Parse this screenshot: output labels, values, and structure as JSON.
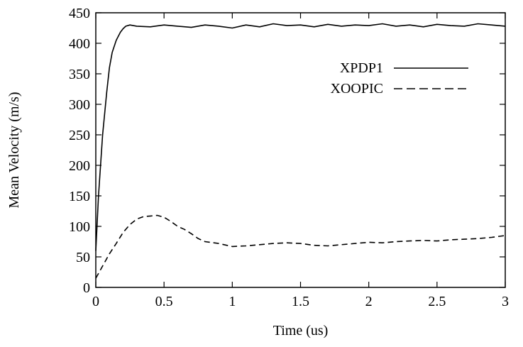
{
  "chart_data": {
    "type": "line",
    "title": "",
    "xlabel": "Time (us)",
    "ylabel": "Mean Velocity (m/s)",
    "xlim": [
      0,
      3
    ],
    "ylim": [
      0,
      450
    ],
    "x_ticks": [
      0,
      0.5,
      1,
      1.5,
      2,
      2.5,
      3
    ],
    "x_tick_labels": [
      "0",
      "0.5",
      "1",
      "1.5",
      "2",
      "2.5",
      "3"
    ],
    "y_ticks": [
      0,
      50,
      100,
      150,
      200,
      250,
      300,
      350,
      400,
      450
    ],
    "y_tick_labels": [
      "0",
      "50",
      "100",
      "150",
      "200",
      "250",
      "300",
      "350",
      "400",
      "450"
    ],
    "grid": false,
    "legend_position": "top-right",
    "series": [
      {
        "name": "XPDP1",
        "style": "solid",
        "color": "#000000",
        "x": [
          0,
          0.02,
          0.05,
          0.08,
          0.1,
          0.12,
          0.15,
          0.18,
          0.2,
          0.22,
          0.25,
          0.3,
          0.4,
          0.5,
          0.6,
          0.7,
          0.8,
          0.9,
          1.0,
          1.1,
          1.2,
          1.3,
          1.4,
          1.5,
          1.6,
          1.7,
          1.8,
          1.9,
          2.0,
          2.1,
          2.2,
          2.3,
          2.4,
          2.5,
          2.6,
          2.7,
          2.8,
          2.9,
          3.0
        ],
        "y": [
          60,
          150,
          250,
          320,
          360,
          385,
          405,
          418,
          424,
          428,
          430,
          428,
          427,
          430,
          428,
          426,
          430,
          428,
          425,
          430,
          427,
          432,
          429,
          430,
          427,
          431,
          428,
          430,
          429,
          432,
          428,
          430,
          427,
          431,
          429,
          428,
          432,
          430,
          428
        ]
      },
      {
        "name": "XOOPIC",
        "style": "dashed",
        "color": "#000000",
        "x": [
          0,
          0.05,
          0.1,
          0.15,
          0.2,
          0.25,
          0.3,
          0.35,
          0.4,
          0.45,
          0.5,
          0.55,
          0.6,
          0.65,
          0.7,
          0.75,
          0.8,
          0.9,
          1.0,
          1.1,
          1.2,
          1.3,
          1.4,
          1.5,
          1.6,
          1.7,
          1.8,
          1.9,
          2.0,
          2.1,
          2.2,
          2.3,
          2.4,
          2.5,
          2.6,
          2.7,
          2.8,
          2.9,
          3.0
        ],
        "y": [
          15,
          35,
          55,
          72,
          90,
          103,
          112,
          116,
          117,
          118,
          115,
          108,
          100,
          95,
          88,
          80,
          75,
          72,
          67,
          68,
          70,
          72,
          73,
          72,
          69,
          68,
          70,
          72,
          74,
          73,
          75,
          76,
          77,
          76,
          78,
          79,
          80,
          82,
          85
        ]
      }
    ]
  }
}
